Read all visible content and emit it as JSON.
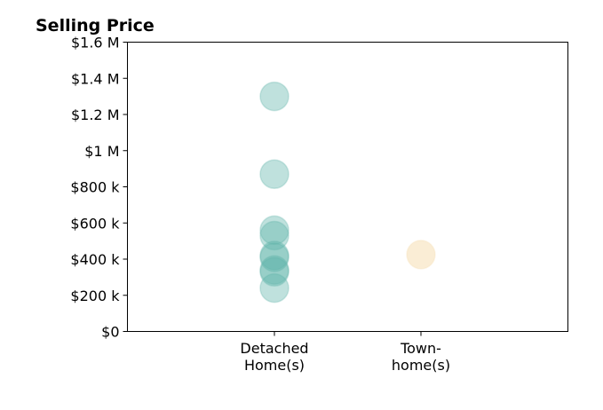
{
  "chart_data": {
    "type": "scatter",
    "title": "Selling Price",
    "xlabel": "",
    "ylabel": "",
    "ylim": [
      0,
      1600000
    ],
    "yticks": [
      0,
      200000,
      400000,
      600000,
      800000,
      1000000,
      1200000,
      1400000,
      1600000
    ],
    "ytick_labels": [
      "$0",
      "$200 k",
      "$400 k",
      "$600 k",
      "$800 k",
      "$1 M",
      "$1.2 M",
      "$1.4 M",
      "$1.6 M"
    ],
    "categories": [
      {
        "lines": [
          "Detached",
          "Home(s)"
        ]
      },
      {
        "lines": [
          "Town-",
          "home(s)"
        ]
      }
    ],
    "grid": false,
    "series": [
      {
        "category_index": 0,
        "color": "#5fb3a9",
        "values": [
          1300000,
          870000,
          560000,
          530000,
          420000,
          410000,
          340000,
          330000,
          240000
        ]
      },
      {
        "category_index": 1,
        "color": "#f5deb3",
        "values": [
          425000
        ]
      }
    ]
  }
}
